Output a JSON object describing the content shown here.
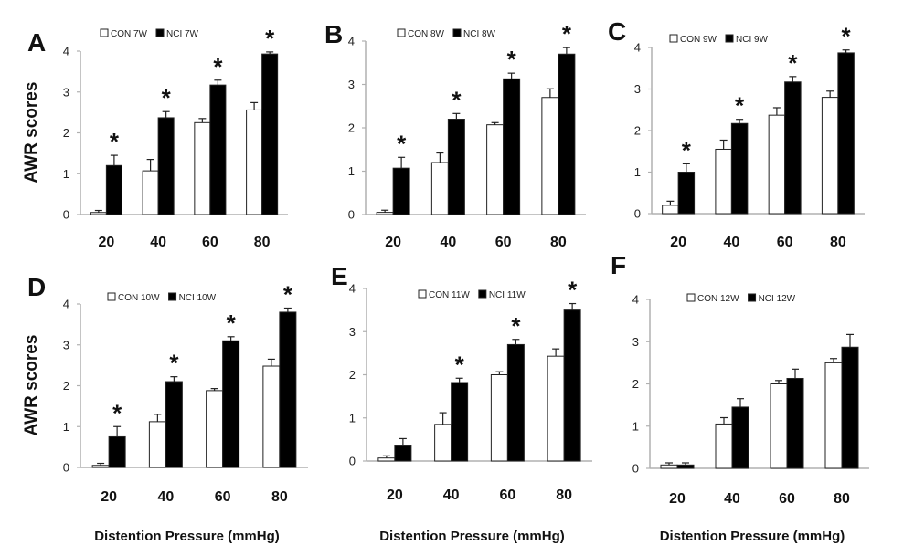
{
  "chart_data": [
    {
      "type": "bar",
      "panel": "A",
      "categories": [
        "20",
        "40",
        "60",
        "80"
      ],
      "series": [
        {
          "name": "CON 7W",
          "values": [
            0.05,
            1.07,
            2.25,
            2.56
          ],
          "errors": [
            0.05,
            0.28,
            0.1,
            0.18
          ]
        },
        {
          "name": "NCI 7W",
          "values": [
            1.2,
            2.37,
            3.17,
            3.93
          ],
          "errors": [
            0.25,
            0.15,
            0.12,
            0.05
          ]
        }
      ],
      "significance": [
        "*",
        "*",
        "*",
        "*"
      ],
      "ylabel": "AWR scores",
      "xlabel": "",
      "ylim": [
        0,
        4
      ],
      "yticks": [
        "0",
        "1",
        "2",
        "3",
        "4"
      ]
    },
    {
      "type": "bar",
      "panel": "B",
      "categories": [
        "20",
        "40",
        "60",
        "80"
      ],
      "series": [
        {
          "name": "CON 8W",
          "values": [
            0.05,
            1.2,
            2.07,
            2.7
          ],
          "errors": [
            0.05,
            0.22,
            0.05,
            0.2
          ]
        },
        {
          "name": "NCI 8W",
          "values": [
            1.07,
            2.2,
            3.13,
            3.7
          ],
          "errors": [
            0.25,
            0.13,
            0.13,
            0.15
          ]
        }
      ],
      "significance": [
        "*",
        "*",
        "*",
        "*"
      ],
      "ylabel": "",
      "xlabel": "",
      "ylim": [
        0,
        4
      ],
      "yticks": [
        "0",
        "1",
        "2",
        "3",
        "4"
      ]
    },
    {
      "type": "bar",
      "panel": "C",
      "categories": [
        "20",
        "40",
        "60",
        "80"
      ],
      "series": [
        {
          "name": "CON 9W",
          "values": [
            0.2,
            1.55,
            2.37,
            2.8
          ],
          "errors": [
            0.1,
            0.22,
            0.18,
            0.15
          ]
        },
        {
          "name": "NCI 9W",
          "values": [
            1.0,
            2.17,
            3.17,
            3.87
          ],
          "errors": [
            0.2,
            0.1,
            0.13,
            0.07
          ]
        }
      ],
      "significance": [
        "*",
        "*",
        "*",
        "*"
      ],
      "ylabel": "",
      "xlabel": "",
      "ylim": [
        0,
        4
      ],
      "yticks": [
        "0",
        "1",
        "2",
        "3",
        "4"
      ]
    },
    {
      "type": "bar",
      "panel": "D",
      "categories": [
        "20",
        "40",
        "60",
        "80"
      ],
      "series": [
        {
          "name": "CON 10W",
          "values": [
            0.05,
            1.12,
            1.88,
            2.48
          ],
          "errors": [
            0.05,
            0.18,
            0.05,
            0.17
          ]
        },
        {
          "name": "NCI 10W",
          "values": [
            0.75,
            2.1,
            3.1,
            3.8
          ],
          "errors": [
            0.25,
            0.12,
            0.1,
            0.1
          ]
        }
      ],
      "significance": [
        "*",
        "*",
        "*",
        "*"
      ],
      "ylabel": "AWR scores",
      "xlabel": "Distention Pressure (mmHg)",
      "ylim": [
        0,
        4
      ],
      "yticks": [
        "0",
        "1",
        "2",
        "3",
        "4"
      ]
    },
    {
      "type": "bar",
      "panel": "E",
      "categories": [
        "20",
        "40",
        "60",
        "80"
      ],
      "series": [
        {
          "name": "CON 11W",
          "values": [
            0.07,
            0.85,
            2.0,
            2.43
          ],
          "errors": [
            0.05,
            0.27,
            0.07,
            0.17
          ]
        },
        {
          "name": "NCI 11W",
          "values": [
            0.37,
            1.82,
            2.7,
            3.5
          ],
          "errors": [
            0.15,
            0.1,
            0.12,
            0.15
          ]
        }
      ],
      "significance": [
        "",
        "*",
        "*",
        "*"
      ],
      "ylabel": "",
      "xlabel": "Distention Pressure (mmHg)",
      "ylim": [
        0,
        4
      ],
      "yticks": [
        "0",
        "1",
        "2",
        "3",
        "4"
      ]
    },
    {
      "type": "bar",
      "panel": "F",
      "categories": [
        "20",
        "40",
        "60",
        "80"
      ],
      "series": [
        {
          "name": "CON 12W",
          "values": [
            0.08,
            1.05,
            2.0,
            2.5
          ],
          "errors": [
            0.05,
            0.15,
            0.08,
            0.1
          ]
        },
        {
          "name": "NCI 12W",
          "values": [
            0.08,
            1.45,
            2.13,
            2.87
          ],
          "errors": [
            0.05,
            0.2,
            0.22,
            0.3
          ]
        }
      ],
      "significance": [
        "",
        "",
        "",
        ""
      ],
      "ylabel": "",
      "xlabel": "Distention Pressure (mmHg)",
      "ylim": [
        0,
        4
      ],
      "yticks": [
        "0",
        "1",
        "2",
        "3",
        "4"
      ]
    }
  ],
  "colors": {
    "con_fill": "#ffffff",
    "nci_fill": "#000000",
    "stroke": "#222222",
    "axis": "#b0b0b0"
  }
}
